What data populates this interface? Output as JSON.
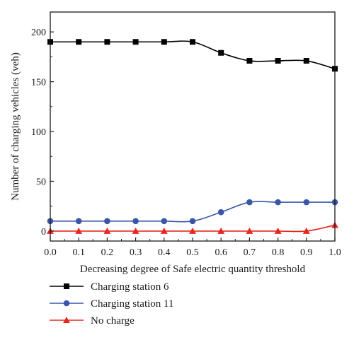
{
  "chart_data": {
    "type": "line",
    "title": "",
    "xlabel": "Decreasing degree of Safe electric quantity threshold",
    "ylabel": "Number of charging vehicles (veh)",
    "x": [
      0.0,
      0.1,
      0.2,
      0.3,
      0.4,
      0.5,
      0.6,
      0.7,
      0.8,
      0.9,
      1.0
    ],
    "xlim": [
      0.0,
      1.0
    ],
    "ylim": [
      -10,
      220
    ],
    "xticks": [
      "0.0",
      "0.1",
      "0.2",
      "0.3",
      "0.4",
      "0.5",
      "0.6",
      "0.7",
      "0.8",
      "0.9",
      "1.0"
    ],
    "yticks": [
      "0",
      "50",
      "100",
      "150",
      "200"
    ],
    "grid": false,
    "legend_position": "bottom-left, below plot",
    "series": [
      {
        "name": "Charging station 6",
        "color": "#000000",
        "marker": "square",
        "values": [
          190,
          190,
          190,
          190,
          190,
          190,
          179,
          171,
          171,
          171,
          163
        ]
      },
      {
        "name": "Charging station 11",
        "color": "#3a56a8",
        "marker": "circle",
        "values": [
          10,
          10,
          10,
          10,
          10,
          10,
          19,
          29,
          29,
          29,
          29
        ]
      },
      {
        "name": "No charge",
        "color": "#e8271f",
        "marker": "triangle",
        "values": [
          0,
          0,
          0,
          0,
          0,
          0,
          0,
          0,
          0,
          0,
          6
        ]
      }
    ]
  }
}
